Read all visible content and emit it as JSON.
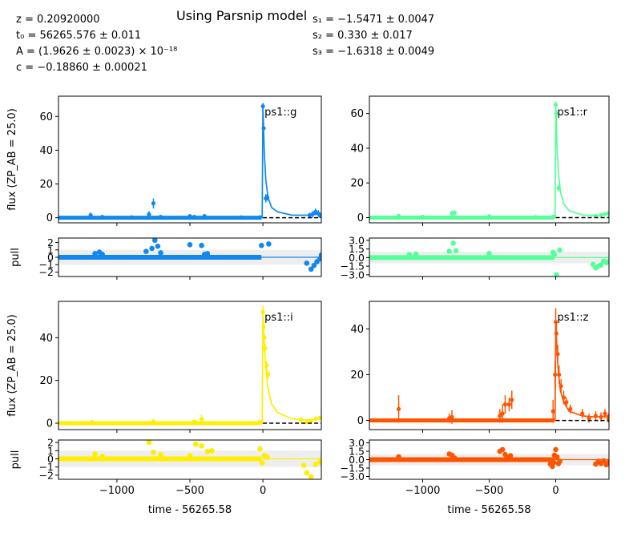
{
  "title": "Using Parsnip model",
  "params_left": [
    "z = 0.20920000",
    "t₀ = 56265.576 ± 0.011",
    "A = (1.9626 ± 0.0023) × 10⁻¹⁸",
    "c = −0.18860 ± 0.00021"
  ],
  "params_right": [
    "s₁ = −1.5471 ± 0.0047",
    "s₂ = 0.330 ± 0.017",
    "s₃ = −1.6318 ± 0.0049"
  ],
  "labels": {
    "flux_ylabel": "flux (ZP_AB = 25.0)",
    "pull_ylabel": "pull",
    "xlabel": "time - 56265.58"
  },
  "chart_data": [
    {
      "type": "line",
      "band": "ps1::g",
      "color": "#1188ee",
      "xlim": [
        -1400,
        400
      ],
      "x_ticks": [
        -1000,
        -500,
        0
      ],
      "flux": {
        "ylim": [
          -3,
          72
        ],
        "y_ticks": [
          0,
          20,
          40,
          60
        ],
        "model_x": [
          -1400,
          -5,
          0,
          5,
          10,
          20,
          35,
          60,
          100,
          200,
          300,
          400
        ],
        "model_y": [
          0,
          0,
          66,
          52,
          38,
          22,
          12,
          6,
          3.5,
          1.5,
          1.5,
          2.5
        ],
        "points": [
          [
            -1180,
            1.5,
            1.5
          ],
          [
            -1100,
            0.5,
            1
          ],
          [
            -900,
            0.3,
            1
          ],
          [
            -780,
            2,
            2
          ],
          [
            -750,
            8.5,
            3
          ],
          [
            -700,
            0.5,
            1
          ],
          [
            -500,
            1,
            1
          ],
          [
            -470,
            0.5,
            1
          ],
          [
            -400,
            1,
            1
          ],
          [
            -150,
            0.2,
            1
          ],
          [
            -20,
            0.3,
            1
          ],
          [
            0,
            66,
            2
          ],
          [
            5,
            53,
            3
          ],
          [
            20,
            11.5,
            2.5
          ],
          [
            30,
            12,
            2
          ],
          [
            320,
            1.5,
            1.5
          ],
          [
            340,
            2,
            2
          ],
          [
            360,
            3.5,
            2
          ],
          [
            380,
            2.5,
            2
          ],
          [
            395,
            1,
            1
          ]
        ]
      },
      "pull": {
        "ylim": [
          -2.6,
          2.6
        ],
        "y_ticks": [
          -2,
          -1,
          0,
          1,
          2
        ],
        "points": [
          [
            -1150,
            0.5
          ],
          [
            -1120,
            0.7
          ],
          [
            -1100,
            0.4
          ],
          [
            -800,
            0.8
          ],
          [
            -760,
            1.2
          ],
          [
            -740,
            2.3
          ],
          [
            -720,
            1.5
          ],
          [
            -700,
            0.6
          ],
          [
            -500,
            1.7
          ],
          [
            -420,
            1.6
          ],
          [
            -400,
            0.4
          ],
          [
            -380,
            0.5
          ],
          [
            -10,
            1.6
          ],
          [
            40,
            1.8
          ],
          [
            300,
            -0.8
          ],
          [
            330,
            -1.6
          ],
          [
            350,
            -1.1
          ],
          [
            370,
            -0.6
          ],
          [
            390,
            -0.2
          ],
          [
            400,
            0.3
          ]
        ]
      }
    },
    {
      "type": "line",
      "band": "ps1::r",
      "color": "#55ff99",
      "xlim": [
        -1400,
        400
      ],
      "x_ticks": [
        -1000,
        -500,
        0
      ],
      "flux": {
        "ylim": [
          -3,
          70
        ],
        "y_ticks": [
          0,
          20,
          40,
          60
        ],
        "model_x": [
          -1400,
          -5,
          0,
          5,
          10,
          20,
          35,
          60,
          100,
          200,
          300,
          400
        ],
        "model_y": [
          0,
          0,
          65,
          52,
          40,
          26,
          15,
          8,
          4,
          1.5,
          1.2,
          2
        ],
        "points": [
          [
            -1180,
            1,
            1
          ],
          [
            -1000,
            0.5,
            1
          ],
          [
            -780,
            2.5,
            1.5
          ],
          [
            -760,
            2.8,
            1.5
          ],
          [
            -500,
            0.8,
            1
          ],
          [
            -150,
            0.3,
            1
          ],
          [
            -20,
            0.5,
            1
          ],
          [
            0,
            65,
            2
          ],
          [
            5,
            60,
            2
          ],
          [
            20,
            17,
            2
          ],
          [
            300,
            1,
            1
          ],
          [
            340,
            1.5,
            1
          ],
          [
            370,
            2,
            1
          ],
          [
            395,
            2.5,
            1
          ]
        ]
      },
      "pull": {
        "ylim": [
          -3.3,
          3.4
        ],
        "y_ticks": [
          -3.0,
          -1.5,
          0.0,
          1.5,
          3.0
        ],
        "tick_labels": [
          "−3.0",
          "−1.5",
          "0.0",
          "1.5",
          "3.0"
        ],
        "points": [
          [
            -1100,
            0.5
          ],
          [
            -1050,
            0.6
          ],
          [
            -800,
            1.1
          ],
          [
            -770,
            2.5
          ],
          [
            -750,
            1.2
          ],
          [
            -500,
            0.7
          ],
          [
            -20,
            0.9
          ],
          [
            -10,
            0.6
          ],
          [
            5,
            -3.0
          ],
          [
            30,
            1.3
          ],
          [
            280,
            -1.2
          ],
          [
            300,
            -1.8
          ],
          [
            320,
            -1.5
          ],
          [
            340,
            -1.3
          ],
          [
            360,
            -0.6
          ],
          [
            380,
            -0.9
          ],
          [
            400,
            -0.7
          ]
        ]
      }
    },
    {
      "type": "line",
      "band": "ps1::i",
      "color": "#ffee00",
      "xlim": [
        -1400,
        400
      ],
      "x_ticks": [
        -1000,
        -500,
        0
      ],
      "flux": {
        "ylim": [
          -3,
          57
        ],
        "y_ticks": [
          0,
          20,
          40
        ],
        "model_x": [
          -1400,
          -5,
          0,
          5,
          10,
          20,
          35,
          60,
          100,
          200,
          300,
          400
        ],
        "model_y": [
          0,
          0,
          52,
          44,
          36,
          26,
          16,
          9,
          5,
          2,
          1.5,
          2
        ],
        "points": [
          [
            -1170,
            0.5,
            1
          ],
          [
            -750,
            0.8,
            1
          ],
          [
            -470,
            0.8,
            1
          ],
          [
            -420,
            2,
            2
          ],
          [
            -20,
            0.5,
            1
          ],
          [
            0,
            52,
            3
          ],
          [
            5,
            45,
            3
          ],
          [
            10,
            40,
            2
          ],
          [
            15,
            35,
            2
          ],
          [
            25,
            27,
            2
          ],
          [
            35,
            23,
            2
          ],
          [
            260,
            1.5,
            1.5
          ],
          [
            300,
            0.5,
            1
          ],
          [
            330,
            1,
            1
          ],
          [
            360,
            2,
            1
          ],
          [
            390,
            2.5,
            1
          ]
        ]
      },
      "pull": {
        "ylim": [
          -2.5,
          2.3
        ],
        "y_ticks": [
          -2,
          -1,
          0,
          1,
          2
        ],
        "points": [
          [
            -1150,
            0.6
          ],
          [
            -1100,
            0.3
          ],
          [
            -780,
            2.0
          ],
          [
            -750,
            0.8
          ],
          [
            -700,
            0.5
          ],
          [
            -500,
            0.4
          ],
          [
            -460,
            1.8
          ],
          [
            -420,
            1.6
          ],
          [
            -380,
            0.9
          ],
          [
            -350,
            1.0
          ],
          [
            -20,
            1.2
          ],
          [
            -5,
            -0.5
          ],
          [
            10,
            0.4
          ],
          [
            30,
            0.2
          ],
          [
            280,
            -0.8
          ],
          [
            300,
            -1.7
          ],
          [
            330,
            -2.2
          ],
          [
            360,
            -0.7
          ],
          [
            390,
            -0.4
          ]
        ]
      }
    },
    {
      "type": "line",
      "band": "ps1::z",
      "color": "#ff5500",
      "xlim": [
        -1400,
        400
      ],
      "x_ticks": [
        -1000,
        -500,
        0
      ],
      "flux": {
        "ylim": [
          -4,
          52
        ],
        "y_ticks": [
          0,
          20,
          40
        ],
        "model_x": [
          -1400,
          -5,
          0,
          5,
          10,
          20,
          35,
          60,
          100,
          200,
          300,
          400
        ],
        "model_y": [
          0,
          0,
          43,
          36,
          30,
          21,
          13,
          8,
          4,
          2,
          1.5,
          2
        ],
        "points": [
          [
            -1180,
            5,
            6
          ],
          [
            -800,
            1,
            2
          ],
          [
            -780,
            1.5,
            3
          ],
          [
            -420,
            2,
            3
          ],
          [
            -400,
            3,
            4
          ],
          [
            -380,
            7,
            4
          ],
          [
            -350,
            7,
            3
          ],
          [
            -330,
            9,
            4
          ],
          [
            -20,
            4,
            5
          ],
          [
            -5,
            20,
            6
          ],
          [
            0,
            43,
            6
          ],
          [
            5,
            38,
            5
          ],
          [
            15,
            29,
            4
          ],
          [
            25,
            20,
            4
          ],
          [
            40,
            15,
            3
          ],
          [
            60,
            10,
            3
          ],
          [
            80,
            8,
            2
          ],
          [
            110,
            5,
            2
          ],
          [
            200,
            3,
            2
          ],
          [
            250,
            1,
            2
          ],
          [
            300,
            2,
            2
          ],
          [
            340,
            1.5,
            2
          ],
          [
            370,
            3,
            2
          ],
          [
            395,
            1,
            2
          ]
        ]
      },
      "pull": {
        "ylim": [
          -3.5,
          3.5
        ],
        "y_ticks": [
          -3.0,
          -1.5,
          0.0,
          1.5,
          3.0
        ],
        "tick_labels": [
          "−3.0",
          "−1.5",
          "0.0",
          "1.5",
          "3.0"
        ],
        "points": [
          [
            -1180,
            0.5
          ],
          [
            -800,
            1.0
          ],
          [
            -780,
            0.8
          ],
          [
            -760,
            0.3
          ],
          [
            -420,
            1.5
          ],
          [
            -400,
            1.8
          ],
          [
            -380,
            0.9
          ],
          [
            -360,
            0.4
          ],
          [
            -340,
            0.7
          ],
          [
            -40,
            -0.8
          ],
          [
            -25,
            -1.2
          ],
          [
            -15,
            -0.5
          ],
          [
            -10,
            0.8
          ],
          [
            0,
            1.8
          ],
          [
            10,
            0.5
          ],
          [
            20,
            -0.7
          ],
          [
            30,
            -0.3
          ],
          [
            300,
            -0.8
          ],
          [
            320,
            -0.3
          ],
          [
            340,
            -0.7
          ],
          [
            360,
            -0.2
          ],
          [
            380,
            -0.9
          ],
          [
            400,
            -0.4
          ]
        ]
      }
    }
  ]
}
